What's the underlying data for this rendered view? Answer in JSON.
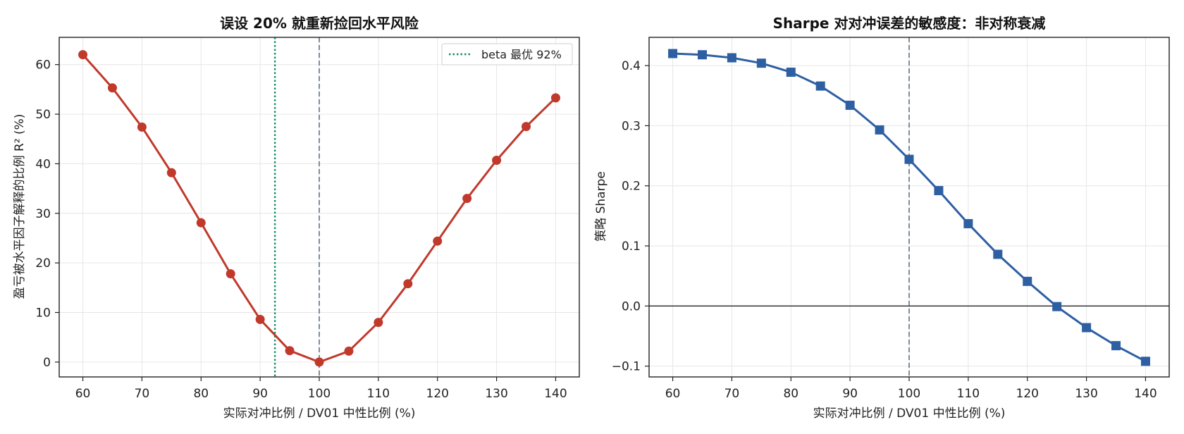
{
  "colors": {
    "left_series": "#c0392b",
    "right_series": "#2e5fa3",
    "beta_line": "#1a8a6a",
    "ref_line": "#708090",
    "grid": "#e6e6e6",
    "axis": "#222222"
  },
  "chart_data": [
    {
      "type": "line",
      "title": "误设 20% 就重新捡回水平风险",
      "xlabel": "实际对冲比例 / DV01 中性比例 (%)",
      "ylabel": "盈亏被水平因子解释的比例 R² (%)",
      "xlim": [
        56,
        144
      ],
      "ylim": [
        -3,
        65.5
      ],
      "xticks": [
        60,
        70,
        80,
        90,
        100,
        110,
        120,
        130,
        140
      ],
      "yticks": [
        0,
        10,
        20,
        30,
        40,
        50,
        60
      ],
      "grid": true,
      "marker": "circle",
      "x": [
        60,
        65,
        70,
        75,
        80,
        85,
        90,
        95,
        100,
        105,
        110,
        115,
        120,
        125,
        130,
        135,
        140
      ],
      "series": [
        {
          "values": [
            62.0,
            55.3,
            47.4,
            38.2,
            28.1,
            17.8,
            8.6,
            2.3,
            0.0,
            2.2,
            8.0,
            15.8,
            24.4,
            33.0,
            40.7,
            47.5,
            53.3
          ]
        }
      ],
      "vlines": [
        {
          "x": 92.5,
          "style": "dotted",
          "label": "beta 最优 92%"
        },
        {
          "x": 100,
          "style": "dashed"
        }
      ],
      "legend": {
        "placement": "top-right",
        "entries": [
          "beta 最优 92%"
        ]
      }
    },
    {
      "type": "line",
      "title": "Sharpe 对对冲误差的敏感度：非对称衰减",
      "xlabel": "实际对冲比例 / DV01 中性比例 (%)",
      "ylabel": "策略 Sharpe",
      "xlim": [
        56,
        144
      ],
      "ylim": [
        -0.118,
        0.447
      ],
      "xticks": [
        60,
        70,
        80,
        90,
        100,
        110,
        120,
        130,
        140
      ],
      "yticks": [
        -0.1,
        0.0,
        0.1,
        0.2,
        0.3,
        0.4
      ],
      "ytick_labels": [
        "−0.1",
        "0.0",
        "0.1",
        "0.2",
        "0.3",
        "0.4"
      ],
      "grid": true,
      "marker": "square",
      "x": [
        60,
        65,
        70,
        75,
        80,
        85,
        90,
        95,
        100,
        105,
        110,
        115,
        120,
        125,
        130,
        135,
        140
      ],
      "series": [
        {
          "values": [
            0.42,
            0.418,
            0.413,
            0.404,
            0.389,
            0.366,
            0.334,
            0.293,
            0.244,
            0.192,
            0.137,
            0.086,
            0.041,
            -0.001,
            -0.036,
            -0.066,
            -0.092
          ]
        }
      ],
      "vlines": [
        {
          "x": 100,
          "style": "dashed"
        }
      ],
      "hlines": [
        {
          "y": 0.0,
          "style": "solid"
        }
      ]
    }
  ]
}
